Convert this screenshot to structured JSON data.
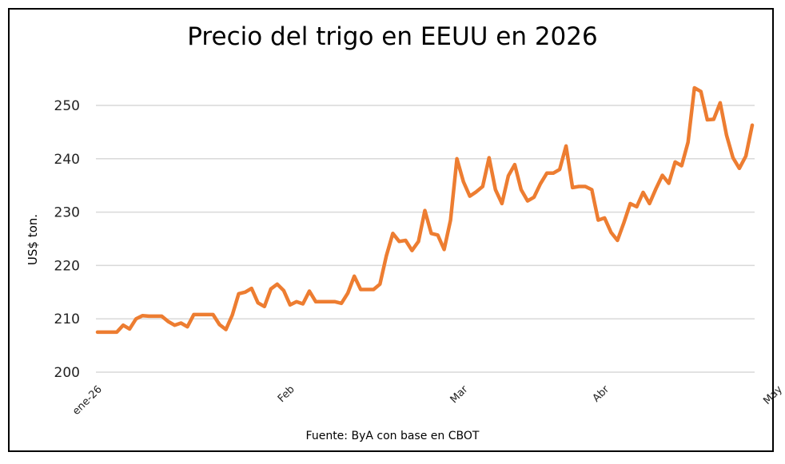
{
  "chart_data": {
    "type": "line",
    "title": "Precio del trigo en EEUU en 2026",
    "ylabel": "US$ ton.",
    "xlabel": "",
    "source": "Fuente: ByA con base en CBOT",
    "ylim": [
      200,
      250
    ],
    "yticks": [
      200,
      210,
      220,
      230,
      240,
      250
    ],
    "grid": true,
    "legend": "none",
    "line_color": "#ED7D31",
    "x_tick_labels": [
      {
        "label": "ene-26",
        "index": 0
      },
      {
        "label": "Feb",
        "index": 30
      },
      {
        "label": "Mar",
        "index": 57
      },
      {
        "label": "Abr",
        "index": 79
      },
      {
        "label": "May",
        "index": 106
      }
    ],
    "series": [
      {
        "values": [
          207.5,
          207.5,
          207.5,
          207.5,
          208.8,
          208.1,
          210.0,
          210.6,
          210.5,
          210.5,
          210.5,
          209.5,
          208.8,
          209.2,
          208.5,
          210.8,
          210.8,
          210.8,
          210.8,
          208.9,
          208.0,
          210.7,
          214.7,
          215.0,
          215.7,
          213.0,
          212.3,
          215.6,
          216.5,
          215.3,
          212.6,
          213.2,
          212.8,
          215.2,
          213.2,
          213.2,
          213.2,
          213.2,
          212.9,
          214.8,
          218.0,
          215.5,
          215.5,
          215.5,
          216.5,
          221.8,
          226.0,
          224.5,
          224.7,
          222.8,
          224.5,
          230.3,
          226.0,
          225.7,
          223.0,
          228.5,
          240.0,
          235.7,
          233.0,
          233.8,
          234.8,
          240.2,
          234.2,
          231.6,
          236.8,
          238.9,
          234.2,
          232.1,
          232.8,
          235.3,
          237.3,
          237.3,
          238.0,
          242.4,
          234.6,
          234.8,
          234.8,
          234.2,
          228.5,
          228.9,
          226.2,
          224.7,
          228.0,
          231.6,
          231.0,
          233.7,
          231.6,
          234.4,
          236.9,
          235.4,
          239.4,
          238.7,
          243.1,
          253.3,
          252.6,
          247.3,
          247.4,
          250.5,
          244.4,
          240.2,
          238.2,
          240.5,
          246.3
        ]
      }
    ]
  }
}
